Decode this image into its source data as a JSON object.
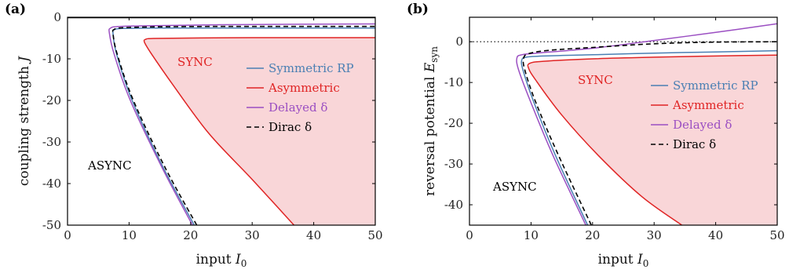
{
  "colors": {
    "symmetric": "#4a7fb3",
    "asymmetric": "#e02424",
    "delayed": "#9b4fc2",
    "dirac": "#000000",
    "sync_fill": "#f9d6d8"
  },
  "chart_data": [
    {
      "type": "line",
      "panel_label": "(a)",
      "xlabel": "input",
      "xlabel_sub": "I",
      "xlabel_subscript": "0",
      "ylabel": "coupling strength",
      "ylabel_var": "J",
      "xlim": [
        0,
        50
      ],
      "ylim": [
        -50,
        0
      ],
      "xticks": [
        0,
        10,
        20,
        30,
        40,
        50
      ],
      "yticks": [
        0,
        -10,
        -20,
        -30,
        -40,
        -50
      ],
      "zero_line": "solid",
      "region_labels": {
        "sync": "SYNC",
        "async": "ASYNC"
      },
      "legend_position": "right-center",
      "series": [
        {
          "key": "symmetric",
          "name": "Symmetric RP",
          "style": "solid",
          "x": [
            20.6,
            15.5,
            10.5,
            8.0,
            7.4,
            7.6,
            9.0,
            15,
            25,
            35,
            50
          ],
          "y": [
            -50,
            -36,
            -20,
            -9,
            -4,
            -3.0,
            -2.7,
            -2.6,
            -2.6,
            -2.6,
            -2.6
          ]
        },
        {
          "key": "asymmetric",
          "name": "Asymmetric",
          "style": "solid",
          "x": [
            36.8,
            30,
            23,
            17,
            13.5,
            12.5,
            12.7,
            14,
            20,
            30,
            40,
            50
          ],
          "y": [
            -50,
            -39,
            -28,
            -16,
            -8.5,
            -6,
            -5.3,
            -5.1,
            -5.0,
            -4.9,
            -4.9,
            -4.9
          ]
        },
        {
          "key": "delayed",
          "name": "Delayed δ",
          "style": "solid",
          "x": [
            20.3,
            15.3,
            10.2,
            7.6,
            6.8,
            7.0,
            8.5,
            15,
            25,
            35,
            50
          ],
          "y": [
            -50,
            -36,
            -20,
            -9,
            -3.8,
            -2.6,
            -2.2,
            -2.0,
            -1.8,
            -1.7,
            -1.6
          ]
        },
        {
          "key": "dirac",
          "name": "Dirac δ",
          "style": "dashed",
          "x": [
            21.0,
            15.8,
            10.7,
            8.1,
            7.4,
            7.6,
            9.2,
            15,
            25,
            35,
            50
          ],
          "y": [
            -50,
            -36,
            -20,
            -9,
            -4,
            -2.9,
            -2.5,
            -2.3,
            -2.2,
            -2.2,
            -2.2
          ]
        }
      ]
    },
    {
      "type": "line",
      "panel_label": "(b)",
      "xlabel": "input",
      "xlabel_sub": "I",
      "xlabel_subscript": "0",
      "ylabel": "reversal potential",
      "ylabel_var": "E",
      "ylabel_subscript": "syn",
      "xlim": [
        0,
        50
      ],
      "ylim": [
        -45,
        6
      ],
      "xticks": [
        0,
        10,
        20,
        30,
        40,
        50
      ],
      "yticks": [
        0,
        -10,
        -20,
        -30,
        -40
      ],
      "zero_line": "dotted",
      "region_labels": {
        "sync": "SYNC",
        "async": "ASYNC"
      },
      "legend_position": "right-center",
      "series": [
        {
          "key": "symmetric",
          "name": "Symmetric RP",
          "style": "solid",
          "x": [
            19.2,
            14,
            10.5,
            8.7,
            8.5,
            9.2,
            12,
            20,
            30,
            40,
            50
          ],
          "y": [
            -45,
            -28,
            -15,
            -7,
            -4.5,
            -3.8,
            -3.5,
            -3.2,
            -2.8,
            -2.5,
            -2.2
          ]
        },
        {
          "key": "asymmetric",
          "name": "Asymmetric",
          "style": "solid",
          "x": [
            34.5,
            28,
            21,
            15,
            10.8,
            9.6,
            9.8,
            12,
            20,
            30,
            40,
            50
          ],
          "y": [
            -45,
            -38,
            -28,
            -18,
            -9.5,
            -6.5,
            -5.3,
            -4.8,
            -4.2,
            -3.8,
            -3.5,
            -3.3
          ]
        },
        {
          "key": "delayed",
          "name": "Delayed δ",
          "style": "solid",
          "x": [
            18.9,
            13.6,
            10,
            8.0,
            7.7,
            8.5,
            11,
            20,
            30,
            40,
            50
          ],
          "y": [
            -45,
            -28,
            -15,
            -7,
            -4,
            -3.2,
            -2.8,
            -1.6,
            0.3,
            2.3,
            4.4
          ]
        },
        {
          "key": "dirac",
          "name": "Dirac δ",
          "style": "dashed",
          "x": [
            19.8,
            14.5,
            10.8,
            9.0,
            8.8,
            9.7,
            13,
            20,
            30,
            40,
            50
          ],
          "y": [
            -45,
            -28,
            -15,
            -7,
            -4,
            -2.9,
            -2.1,
            -1.4,
            -0.5,
            -0.1,
            0.0
          ]
        }
      ]
    }
  ]
}
